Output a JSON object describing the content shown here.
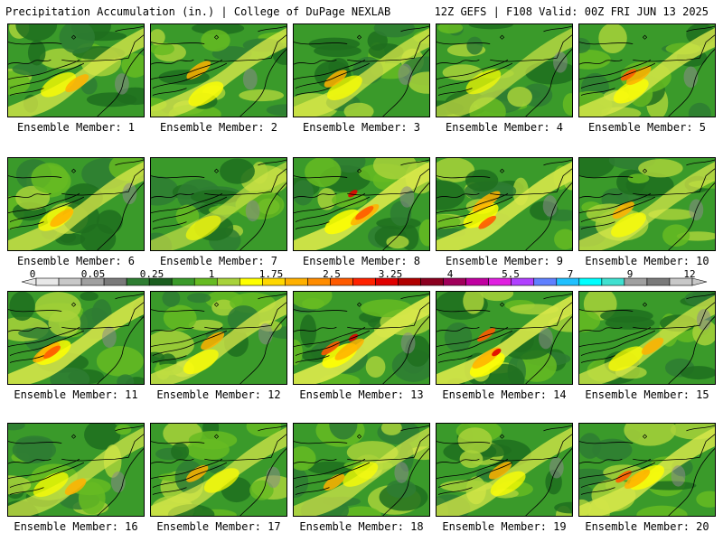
{
  "header": {
    "left": "Precipitation Accumulation (in.) | College of DuPage NEXLAB",
    "right": "12Z GEFS | F108 Valid: 00Z FRI JUN 13 2025"
  },
  "members": [
    {
      "label": "Ensemble Member: 1",
      "hot": 0.55
    },
    {
      "label": "Ensemble Member: 2",
      "hot": 0.6
    },
    {
      "label": "Ensemble Member: 3",
      "hot": 0.5
    },
    {
      "label": "Ensemble Member: 4",
      "hot": 0.25
    },
    {
      "label": "Ensemble Member: 5",
      "hot": 0.65
    },
    {
      "label": "Ensemble Member: 6",
      "hot": 0.55
    },
    {
      "label": "Ensemble Member: 7",
      "hot": 0.15
    },
    {
      "label": "Ensemble Member: 8",
      "hot": 0.9
    },
    {
      "label": "Ensemble Member: 9",
      "hot": 0.85
    },
    {
      "label": "Ensemble Member: 10",
      "hot": 0.45
    },
    {
      "label": "Ensemble Member: 11",
      "hot": 0.8
    },
    {
      "label": "Ensemble Member: 12",
      "hot": 0.55
    },
    {
      "label": "Ensemble Member: 13",
      "hot": 0.95
    },
    {
      "label": "Ensemble Member: 14",
      "hot": 0.9
    },
    {
      "label": "Ensemble Member: 15",
      "hot": 0.45
    },
    {
      "label": "Ensemble Member: 16",
      "hot": 0.4
    },
    {
      "label": "Ensemble Member: 17",
      "hot": 0.45
    },
    {
      "label": "Ensemble Member: 18",
      "hot": 0.4
    },
    {
      "label": "Ensemble Member: 19",
      "hot": 0.5
    },
    {
      "label": "Ensemble Member: 20",
      "hot": 0.7
    }
  ],
  "colorbar": {
    "tick_labels": [
      "0",
      "0.05",
      "0.25",
      "1",
      "1.75",
      "2.5",
      "3.25",
      "4",
      "5.5",
      "7",
      "9",
      "12"
    ],
    "colors": [
      "#e8e8e8",
      "#c8c8c8",
      "#a0a0a0",
      "#7a7a7a",
      "#2e7d32",
      "#1b5e20",
      "#3a9a2a",
      "#66bb22",
      "#a8d23a",
      "#ffff00",
      "#ffd700",
      "#ffb000",
      "#ff8c00",
      "#ff5a00",
      "#ff2200",
      "#e00000",
      "#b00000",
      "#8b0020",
      "#a0005a",
      "#c000a0",
      "#e020e0",
      "#b040ff",
      "#6080ff",
      "#20c0ff",
      "#00ffff",
      "#40e0d0",
      "#a0a0a0",
      "#7a7a7a",
      "#c8c8c8"
    ]
  }
}
